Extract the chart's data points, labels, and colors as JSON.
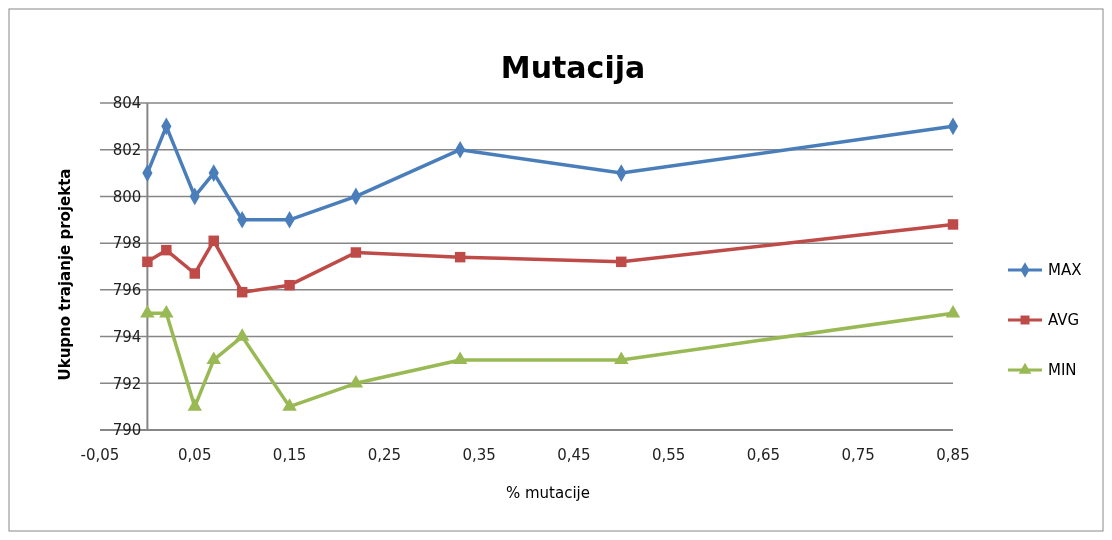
{
  "chart_data": {
    "type": "line",
    "title": "Mutacija",
    "xlabel": "% mutacije",
    "ylabel": "Ukupno trajanje projekta",
    "x": [
      0,
      0.02,
      0.05,
      0.07,
      0.1,
      0.15,
      0.22,
      0.33,
      0.5,
      0.85
    ],
    "xlim": [
      -0.05,
      0.85
    ],
    "xticks": [
      {
        "value": -0.05,
        "label": "-0,05"
      },
      {
        "value": 0.05,
        "label": "0,05"
      },
      {
        "value": 0.15,
        "label": "0,15"
      },
      {
        "value": 0.25,
        "label": "0,25"
      },
      {
        "value": 0.35,
        "label": "0,35"
      },
      {
        "value": 0.45,
        "label": "0,45"
      },
      {
        "value": 0.55,
        "label": "0,55"
      },
      {
        "value": 0.65,
        "label": "0,65"
      },
      {
        "value": 0.75,
        "label": "0,75"
      },
      {
        "value": 0.85,
        "label": "0,85"
      }
    ],
    "ylim": [
      790,
      804
    ],
    "yticks": [
      790,
      792,
      794,
      796,
      798,
      800,
      802,
      804
    ],
    "grid": "y",
    "legend": "right",
    "series": [
      {
        "name": "MAX",
        "color": "#4a7ebb",
        "marker": "diamond",
        "values": [
          801,
          803,
          800,
          801,
          799,
          799,
          800,
          802,
          801,
          803
        ]
      },
      {
        "name": "AVG",
        "color": "#be4b48",
        "marker": "square",
        "values": [
          797.2,
          797.7,
          796.7,
          798.1,
          795.9,
          796.2,
          797.6,
          797.4,
          797.2,
          798.8
        ]
      },
      {
        "name": "MIN",
        "color": "#98b954",
        "marker": "triangle",
        "values": [
          795,
          795,
          791,
          793,
          794,
          791,
          792,
          793,
          793,
          795
        ]
      }
    ]
  }
}
